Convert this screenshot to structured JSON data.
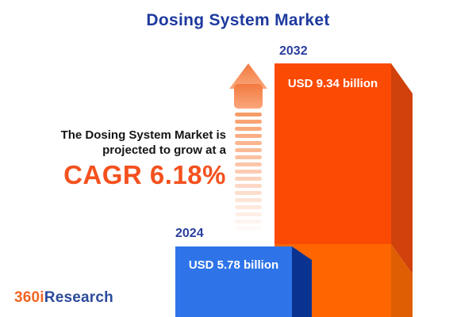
{
  "title": "Dosing System Market",
  "annotation": {
    "line1": "The Dosing System Market is",
    "line2": "projected to grow at a",
    "cagr": "CAGR 6.18%"
  },
  "chart_data": {
    "type": "bar",
    "title": "Dosing System Market",
    "categories": [
      "2024",
      "2032"
    ],
    "values": [
      5.78,
      9.34
    ],
    "unit": "USD billion",
    "value_labels": [
      "USD 5.78 billion",
      "USD 9.34 billion"
    ],
    "annotation": "The Dosing System Market is projected to grow at a CAGR 6.18%",
    "cagr_percent": 6.18,
    "bar_colors": [
      "#2E74E8",
      "#FB4A04"
    ],
    "legend": false,
    "grid": false,
    "axes": false
  },
  "bars": [
    {
      "year": "2024",
      "label": "USD 5.78 billion",
      "color": "#2E74E8",
      "side_color": "#0A3391"
    },
    {
      "year": "2032",
      "label": "USD 9.34 billion",
      "color": "#FB4A04",
      "side_color": "#D0410B",
      "lower_color": "#FF6600",
      "lower_side_color": "#E05E03"
    }
  ],
  "arrow": {
    "stripe_color": "#F9955E",
    "stripe_count": 17
  },
  "logo": {
    "part1": "360i",
    "part2": "Research",
    "color1": "#F26522",
    "color2": "#2B4B9B"
  },
  "colors": {
    "title": "#1E3A9E",
    "annotation_text": "#151515",
    "cagr": "#F4511E",
    "background": "#FFFFFF"
  }
}
